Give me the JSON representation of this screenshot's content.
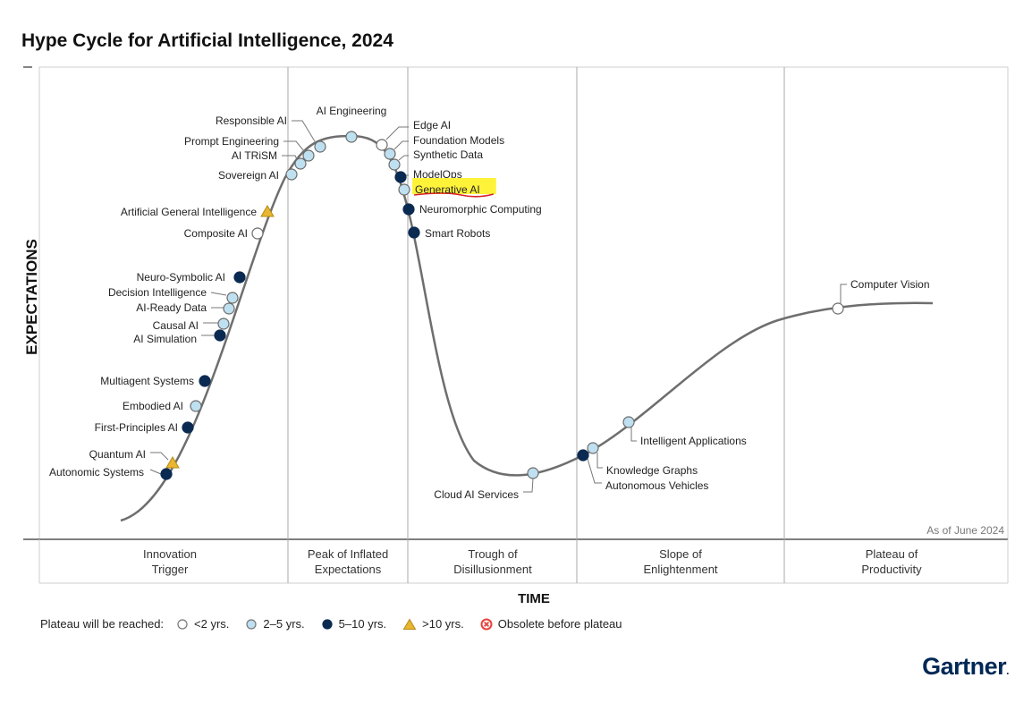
{
  "chart_data": {
    "type": "hype-cycle",
    "title": "Hype Cycle for Artificial Intelligence, 2024",
    "xlabel": "TIME",
    "ylabel": "EXPECTATIONS",
    "note": "As of June 2024",
    "phases": [
      {
        "name": "Innovation Trigger",
        "line1": "Innovation",
        "line2": "Trigger"
      },
      {
        "name": "Peak of Inflated Expectations",
        "line1": "Peak of Inflated",
        "line2": "Expectations"
      },
      {
        "name": "Trough of Disillusionment",
        "line1": "Trough of",
        "line2": "Disillusionment"
      },
      {
        "name": "Slope of Enlightenment",
        "line1": "Slope of",
        "line2": "Enlightenment"
      },
      {
        "name": "Plateau of Productivity",
        "line1": "Plateau of",
        "line2": "Productivity"
      }
    ],
    "legend": {
      "title": "Plateau will be reached:",
      "items": [
        {
          "key": "lt2",
          "label": "<2 yrs."
        },
        {
          "key": "2to5",
          "label": "2–5 yrs."
        },
        {
          "key": "5to10",
          "label": "5–10 yrs."
        },
        {
          "key": "gt10",
          "label": ">10 yrs."
        },
        {
          "key": "obsolete",
          "label": "Obsolete before plateau"
        }
      ]
    },
    "technologies": [
      {
        "name": "Autonomic Systems",
        "phase": "Innovation Trigger",
        "plateau": "5to10"
      },
      {
        "name": "Quantum AI",
        "phase": "Innovation Trigger",
        "plateau": "gt10"
      },
      {
        "name": "First-Principles AI",
        "phase": "Innovation Trigger",
        "plateau": "5to10"
      },
      {
        "name": "Embodied AI",
        "phase": "Innovation Trigger",
        "plateau": "2to5"
      },
      {
        "name": "Multiagent Systems",
        "phase": "Innovation Trigger",
        "plateau": "5to10"
      },
      {
        "name": "AI Simulation",
        "phase": "Innovation Trigger",
        "plateau": "5to10"
      },
      {
        "name": "Causal AI",
        "phase": "Innovation Trigger",
        "plateau": "2to5"
      },
      {
        "name": "AI-Ready Data",
        "phase": "Innovation Trigger",
        "plateau": "2to5"
      },
      {
        "name": "Decision Intelligence",
        "phase": "Innovation Trigger",
        "plateau": "2to5"
      },
      {
        "name": "Neuro-Symbolic AI",
        "phase": "Innovation Trigger",
        "plateau": "5to10"
      },
      {
        "name": "Composite AI",
        "phase": "Innovation Trigger",
        "plateau": "lt2"
      },
      {
        "name": "Artificial General Intelligence",
        "phase": "Innovation Trigger",
        "plateau": "gt10"
      },
      {
        "name": "Sovereign AI",
        "phase": "Peak of Inflated Expectations",
        "plateau": "2to5"
      },
      {
        "name": "AI TRiSM",
        "phase": "Peak of Inflated Expectations",
        "plateau": "2to5"
      },
      {
        "name": "Prompt Engineering",
        "phase": "Peak of Inflated Expectations",
        "plateau": "2to5"
      },
      {
        "name": "Responsible AI",
        "phase": "Peak of Inflated Expectations",
        "plateau": "2to5"
      },
      {
        "name": "AI Engineering",
        "phase": "Peak of Inflated Expectations",
        "plateau": "2to5"
      },
      {
        "name": "Edge AI",
        "phase": "Peak of Inflated Expectations",
        "plateau": "lt2"
      },
      {
        "name": "Foundation Models",
        "phase": "Peak of Inflated Expectations",
        "plateau": "2to5"
      },
      {
        "name": "Synthetic Data",
        "phase": "Peak of Inflated Expectations",
        "plateau": "2to5"
      },
      {
        "name": "ModelOps",
        "phase": "Peak of Inflated Expectations",
        "plateau": "5to10"
      },
      {
        "name": "Generative AI",
        "phase": "Peak of Inflated Expectations",
        "plateau": "2to5",
        "highlighted": true
      },
      {
        "name": "Neuromorphic Computing",
        "phase": "Peak of Inflated Expectations",
        "plateau": "5to10"
      },
      {
        "name": "Smart Robots",
        "phase": "Trough of Disillusionment",
        "plateau": "5to10"
      },
      {
        "name": "Cloud AI Services",
        "phase": "Trough of Disillusionment",
        "plateau": "2to5"
      },
      {
        "name": "Autonomous Vehicles",
        "phase": "Slope of Enlightenment",
        "plateau": "5to10"
      },
      {
        "name": "Knowledge Graphs",
        "phase": "Slope of Enlightenment",
        "plateau": "2to5"
      },
      {
        "name": "Intelligent Applications",
        "phase": "Slope of Enlightenment",
        "plateau": "2to5"
      },
      {
        "name": "Computer Vision",
        "phase": "Plateau of Productivity",
        "plateau": "lt2"
      }
    ]
  },
  "brand": {
    "name": "Gartner",
    "dot": "."
  },
  "colors": {
    "lt2": "#ffffff",
    "2to5": "#bfe0f0",
    "5to10": "#0b2a52",
    "gt10": "#e8b630",
    "obsolete": "#e8413c",
    "curve": "#6e6e6e",
    "highlight": "#fff33a",
    "underline": "#d81f26"
  }
}
